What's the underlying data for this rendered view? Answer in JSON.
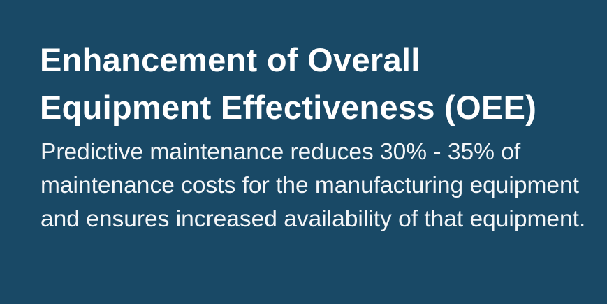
{
  "slide": {
    "title_line1": "Enhancement of Overall",
    "title_line2": "Equipment Effectiveness (OEE)",
    "body": "Predictive maintenance reduces 30% - 35% of maintenance costs for the manufacturing equipment and ensures increased availability of that equipment.",
    "background_color": "#194966",
    "text_color": "#ffffff"
  }
}
